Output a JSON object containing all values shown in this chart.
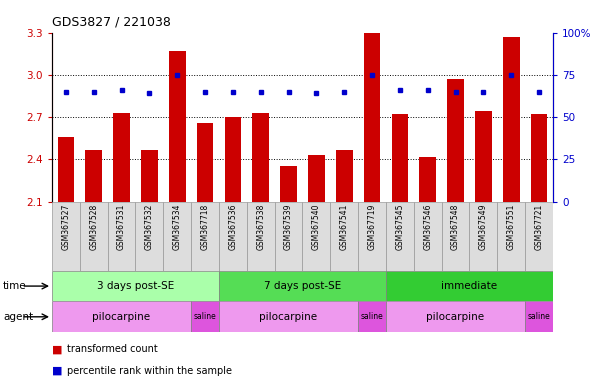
{
  "title": "GDS3827 / 221038",
  "samples": [
    "GSM367527",
    "GSM367528",
    "GSM367531",
    "GSM367532",
    "GSM367534",
    "GSM367718",
    "GSM367536",
    "GSM367538",
    "GSM367539",
    "GSM367540",
    "GSM367541",
    "GSM367719",
    "GSM367545",
    "GSM367546",
    "GSM367548",
    "GSM367549",
    "GSM367551",
    "GSM367721"
  ],
  "bar_values": [
    2.56,
    2.47,
    2.73,
    2.47,
    3.17,
    2.66,
    2.7,
    2.73,
    2.35,
    2.43,
    2.47,
    3.3,
    2.72,
    2.42,
    2.97,
    2.74,
    3.27,
    2.72
  ],
  "dot_values": [
    65,
    65,
    66,
    64,
    75,
    65,
    65,
    65,
    65,
    64,
    65,
    75,
    66,
    66,
    65,
    65,
    75,
    65
  ],
  "ylim": [
    2.1,
    3.3
  ],
  "y2lim": [
    0,
    100
  ],
  "yticks": [
    2.1,
    2.4,
    2.7,
    3.0,
    3.3
  ],
  "y2ticks": [
    0,
    25,
    50,
    75,
    100
  ],
  "bar_color": "#cc0000",
  "dot_color": "#0000cc",
  "bar_width": 0.6,
  "time_groups": [
    {
      "label": "3 days post-SE",
      "start": 0,
      "end": 5,
      "color": "#aaffaa"
    },
    {
      "label": "7 days post-SE",
      "start": 6,
      "end": 11,
      "color": "#55dd55"
    },
    {
      "label": "immediate",
      "start": 12,
      "end": 17,
      "color": "#33cc33"
    }
  ],
  "agent_groups": [
    {
      "label": "pilocarpine",
      "start": 0,
      "end": 4,
      "color": "#ee99ee"
    },
    {
      "label": "saline",
      "start": 5,
      "end": 5,
      "color": "#dd55dd"
    },
    {
      "label": "pilocarpine",
      "start": 6,
      "end": 10,
      "color": "#ee99ee"
    },
    {
      "label": "saline",
      "start": 11,
      "end": 11,
      "color": "#dd55dd"
    },
    {
      "label": "pilocarpine",
      "start": 12,
      "end": 16,
      "color": "#ee99ee"
    },
    {
      "label": "saline",
      "start": 17,
      "end": 17,
      "color": "#dd55dd"
    }
  ],
  "legend_bar_label": "transformed count",
  "legend_dot_label": "percentile rank within the sample",
  "label_time": "time",
  "label_agent": "agent",
  "tick_color_left": "#cc0000",
  "tick_color_right": "#0000cc",
  "background_color": "#ffffff",
  "dotted_line_values": [
    2.4,
    2.7,
    3.0
  ],
  "sample_cell_color": "#dddddd",
  "sample_cell_edge": "#999999"
}
